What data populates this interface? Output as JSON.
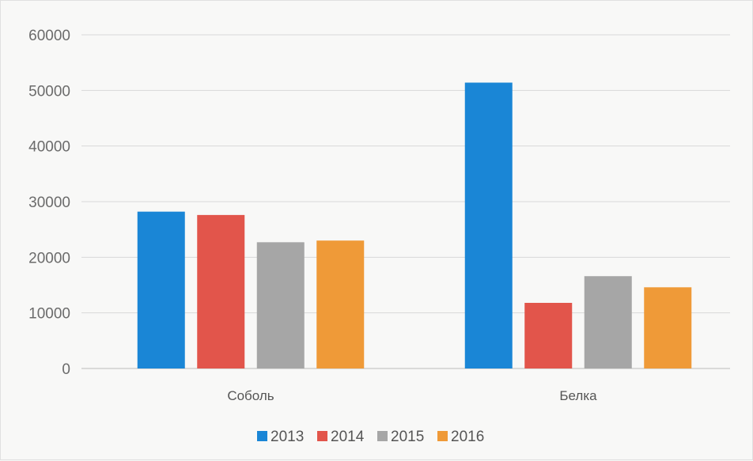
{
  "chart_data": {
    "type": "bar",
    "categories": [
      "Соболь",
      "Белка"
    ],
    "series": [
      {
        "name": "2013",
        "values": [
          28200,
          51400
        ],
        "color": "#1a86d6"
      },
      {
        "name": "2014",
        "values": [
          27600,
          11800
        ],
        "color": "#e2554b"
      },
      {
        "name": "2015",
        "values": [
          22700,
          16600
        ],
        "color": "#a6a6a6"
      },
      {
        "name": "2016",
        "values": [
          23000,
          14600
        ],
        "color": "#ef9a38"
      }
    ],
    "yticks": [
      "0",
      "10000",
      "20000",
      "30000",
      "40000",
      "50000",
      "60000"
    ],
    "ylim": [
      0,
      60000
    ],
    "title": "",
    "xlabel": "",
    "ylabel": "",
    "grid": true,
    "legend_position": "bottom"
  }
}
